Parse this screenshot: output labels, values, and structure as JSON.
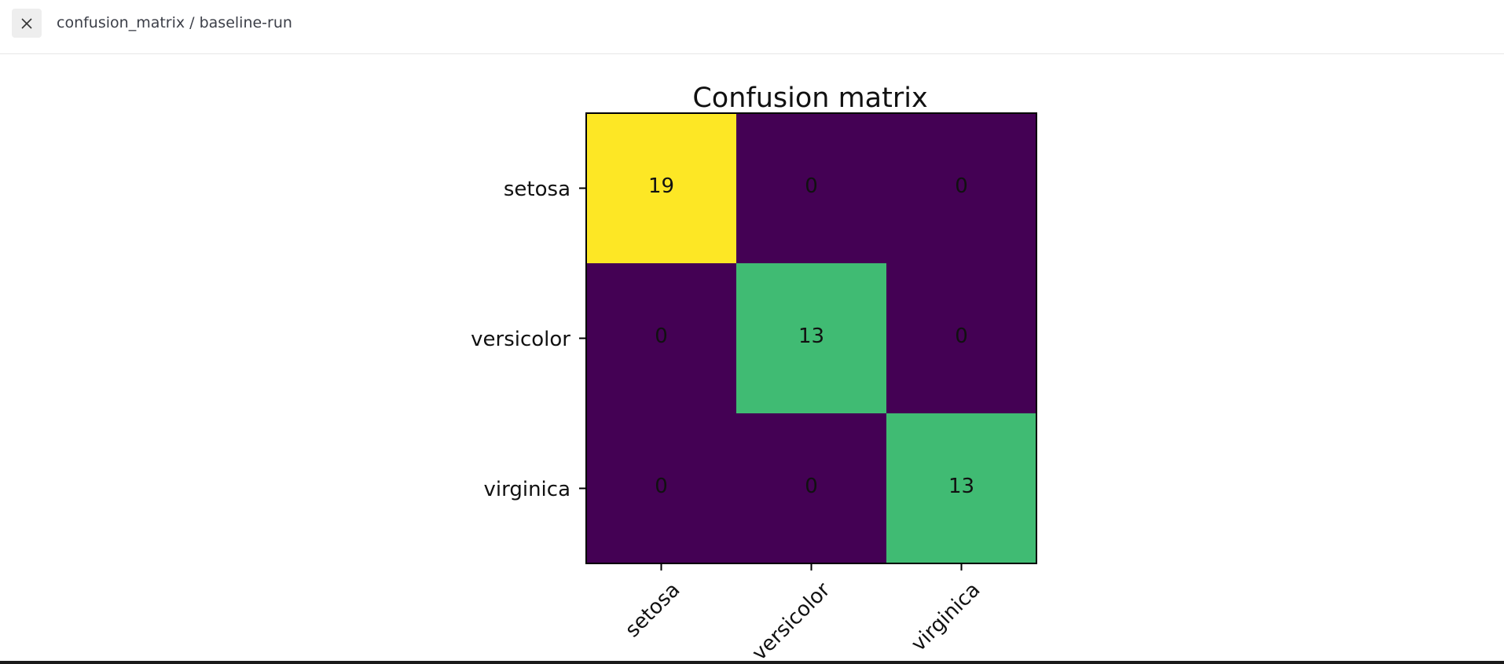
{
  "header": {
    "title": "confusion_matrix / baseline-run",
    "close_icon": "close-icon"
  },
  "chart_data": {
    "type": "heatmap",
    "title": "Confusion matrix",
    "row_labels": [
      "setosa",
      "versicolor",
      "virginica"
    ],
    "col_labels": [
      "setosa",
      "versicolor",
      "virginica"
    ],
    "values": [
      [
        19,
        0,
        0
      ],
      [
        0,
        13,
        0
      ],
      [
        0,
        0,
        13
      ]
    ],
    "colormap": "viridis",
    "vmin": 0,
    "vmax": 19,
    "colors": {
      "low": "#440154",
      "mid": "#3dba74",
      "high": "#fde725"
    }
  }
}
